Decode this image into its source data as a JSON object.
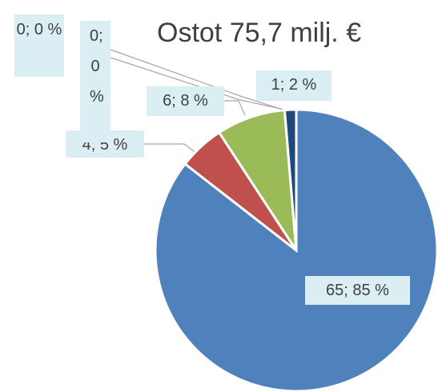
{
  "chart_data": {
    "type": "pie",
    "title": "Ostot 75,7 milj. €",
    "categories": [
      null,
      null,
      null,
      null,
      null,
      null
    ],
    "values": [
      65,
      4,
      6,
      0,
      0,
      1
    ],
    "value_labels": [
      "65; 85 %",
      "4; 5 %",
      "6; 8 %",
      "0; 0 %",
      "0; 0 %",
      "1; 2 %"
    ],
    "colors": [
      "#4f81bd",
      "#c0504d",
      "#9bbb59",
      "#8064a2",
      "#4bacc6",
      "#1f497d"
    ]
  }
}
